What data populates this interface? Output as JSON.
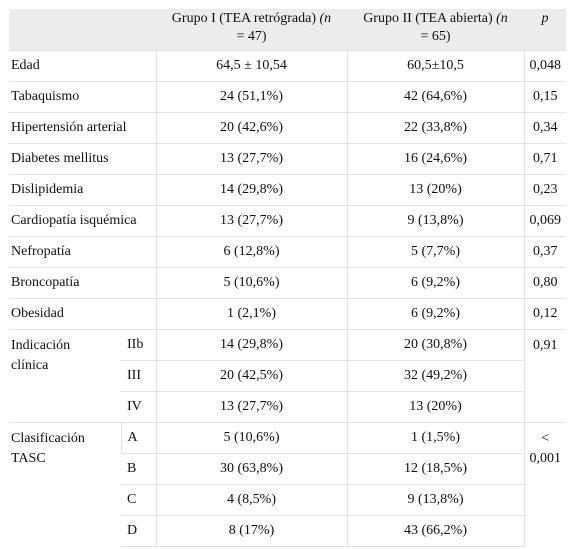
{
  "header": {
    "group1_label": "Grupo I (TEA retrógrada) ",
    "group1_n": "(n",
    "group1_count": " = 47)",
    "group2_label": "Grupo II (TEA abierta) ",
    "group2_n": "(n",
    "group2_count": " = 65)",
    "p_label": "p"
  },
  "rows": [
    {
      "label": "Edad",
      "g1": "64,5 ± 10,54",
      "g2": "60,5±10,5",
      "p": "0,048"
    },
    {
      "label": "Tabaquismo",
      "g1": "24 (51,1%)",
      "g2": "42 (64,6%)",
      "p": "0,15"
    },
    {
      "label": "Hipertensión arterial",
      "g1": "20 (42,6%)",
      "g2": "22 (33,8%)",
      "p": "0,34"
    },
    {
      "label": "Diabetes mellitus",
      "g1": "13 (27,7%)",
      "g2": "16 (24,6%)",
      "p": "0,71"
    },
    {
      "label": "Dislipidemia",
      "g1": "14 (29,8%)",
      "g2": "13 (20%)",
      "p": "0,23"
    },
    {
      "label": "Cardiopatía isquémica",
      "g1": "13 (27,7%)",
      "g2": "9 (13,8%)",
      "p": "0,069"
    },
    {
      "label": "Nefropatía",
      "g1": "6 (12,8%)",
      "g2": "5 (7,7%)",
      "p": "0,37"
    },
    {
      "label": "Broncopatía",
      "g1": "5 (10,6%)",
      "g2": "6 (9,2%)",
      "p": "0,80"
    },
    {
      "label": "Obesidad",
      "g1": "1 (2,1%)",
      "g2": "6 (9,2%)",
      "p": "0,12"
    }
  ],
  "indicacion": {
    "label_line1": "Indicación",
    "label_line2": "clínica",
    "p": "0,91",
    "sub": [
      {
        "label": "IIb",
        "g1": "14 (29,8%)",
        "g2": "20 (30,8%)"
      },
      {
        "label": "III",
        "g1": "20 (42,5%)",
        "g2": "32 (49,2%)"
      },
      {
        "label": "IV",
        "g1": "13 (27,7%)",
        "g2": "13 (20%)"
      }
    ]
  },
  "tasc": {
    "label_line1": "Clasificación",
    "label_line2": "TASC",
    "p_line1": "<",
    "p_line2": "0,001",
    "sub": [
      {
        "label": "A",
        "g1": "5 (10,6%)",
        "g2": "1 (1,5%)"
      },
      {
        "label": "B",
        "g1": "30 (63,8%)",
        "g2": "12 (18,5%)"
      },
      {
        "label": "C",
        "g1": "4 (8,5%)",
        "g2": "9 (13,8%)"
      },
      {
        "label": "D",
        "g1": "8 (17%)",
        "g2": "43 (66,2%)"
      }
    ]
  }
}
